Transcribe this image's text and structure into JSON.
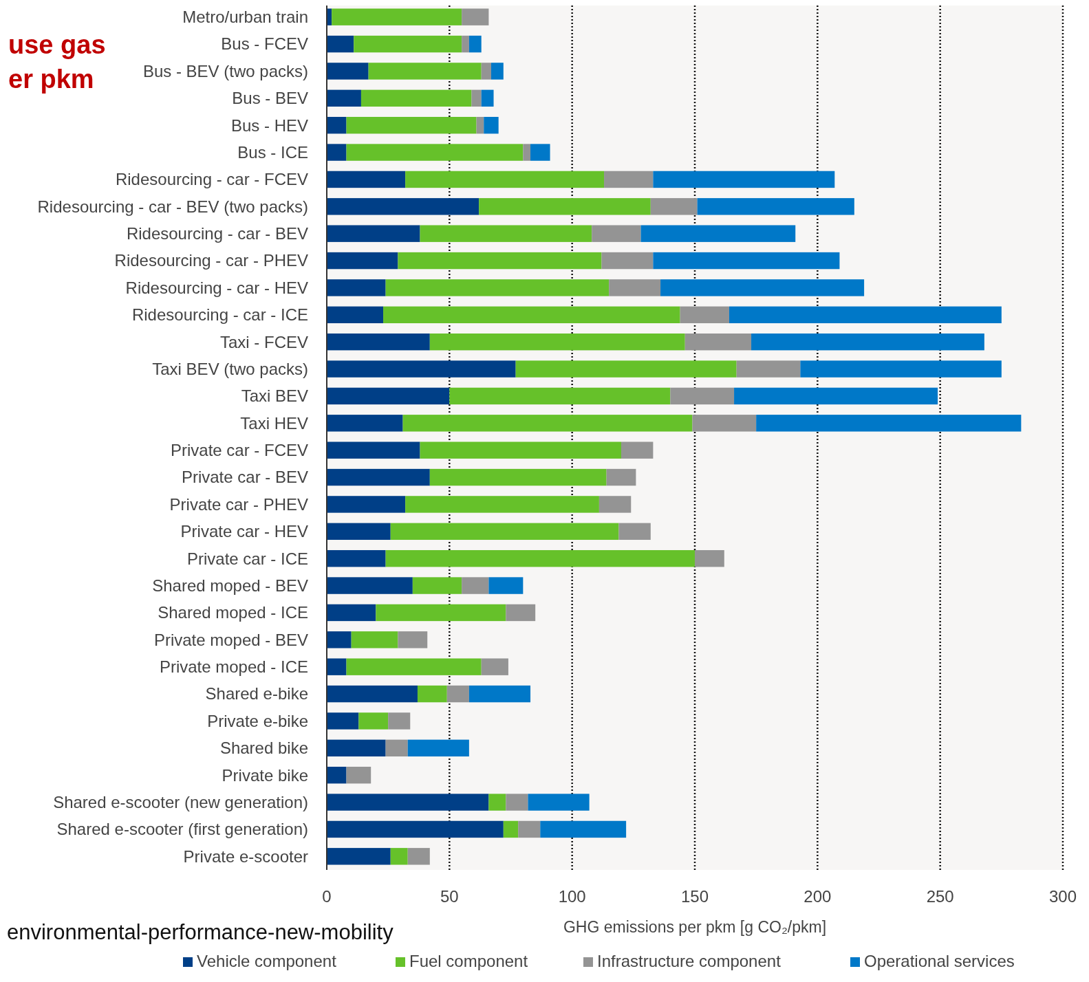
{
  "chart_data": {
    "type": "bar",
    "orientation": "horizontal",
    "stacked": true,
    "title": "use gas\ner pkm",
    "xlabel": "GHG emissions per pkm [g CO₂/pkm]",
    "annotations": [
      "environmental-performance-new-mobility"
    ],
    "categories": [
      "Metro/urban train",
      "Bus - FCEV",
      "Bus - BEV (two packs)",
      "Bus - BEV",
      "Bus - HEV",
      "Bus - ICE",
      "Ridesourcing - car - FCEV",
      "Ridesourcing - car - BEV (two packs)",
      "Ridesourcing - car - BEV",
      "Ridesourcing - car - PHEV",
      "Ridesourcing - car - HEV",
      "Ridesourcing - car - ICE",
      "Taxi - FCEV",
      "Taxi  BEV (two packs)",
      "Taxi  BEV",
      "Taxi  HEV",
      "Private car - FCEV",
      "Private car - BEV",
      "Private car - PHEV",
      "Private car - HEV",
      "Private car - ICE",
      "Shared moped - BEV",
      "Shared moped - ICE",
      "Private moped - BEV",
      "Private moped - ICE",
      "Shared e-bike",
      "Private e-bike",
      "Shared bike",
      "Private bike",
      "Shared e-scooter (new generation)",
      "Shared e-scooter (first generation)",
      "Private e-scooter"
    ],
    "series": [
      {
        "name": "Vehicle component",
        "color": "#003f87",
        "values": [
          2,
          11,
          17,
          14,
          8,
          8,
          32,
          62,
          38,
          29,
          24,
          23,
          42,
          77,
          50,
          31,
          38,
          42,
          32,
          26,
          24,
          35,
          20,
          10,
          8,
          37,
          13,
          24,
          8,
          66,
          72,
          26
        ]
      },
      {
        "name": "Fuel component",
        "color": "#66c12a",
        "values": [
          53,
          44,
          46,
          45,
          53,
          72,
          81,
          70,
          70,
          83,
          91,
          121,
          104,
          90,
          90,
          118,
          82,
          72,
          79,
          93,
          126,
          20,
          53,
          19,
          55,
          12,
          12,
          0,
          0,
          7,
          6,
          7
        ]
      },
      {
        "name": "Infrastructure component",
        "color": "#949494",
        "values": [
          11,
          3,
          4,
          4,
          3,
          3,
          20,
          19,
          20,
          21,
          21,
          20,
          27,
          26,
          26,
          26,
          13,
          12,
          13,
          13,
          12,
          11,
          12,
          12,
          11,
          9,
          9,
          9,
          10,
          9,
          9,
          9
        ]
      },
      {
        "name": "Operational services",
        "color": "#0078c8",
        "values": [
          0,
          5,
          5,
          5,
          6,
          8,
          74,
          64,
          63,
          76,
          83,
          111,
          95,
          82,
          83,
          108,
          0,
          0,
          0,
          0,
          0,
          14,
          0,
          0,
          0,
          25,
          0,
          25,
          0,
          25,
          35,
          0
        ]
      }
    ],
    "xlim": [
      0,
      300
    ],
    "xticks": [
      0,
      50,
      100,
      150,
      200,
      250,
      300
    ],
    "grid": "x",
    "legend": "bottom"
  }
}
